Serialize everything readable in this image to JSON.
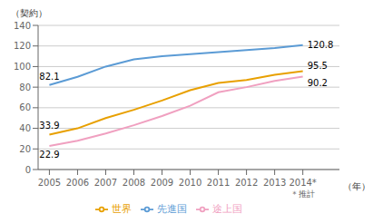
{
  "chart_data": {
    "type": "line",
    "y_label": "（契約）",
    "x_label": "（年）",
    "x": [
      2005,
      2006,
      2007,
      2008,
      2009,
      2010,
      2011,
      2012,
      2013,
      2014
    ],
    "series": [
      {
        "name": "先進国",
        "color": "#5b9bd5",
        "values": [
          82.1,
          90.0,
          100.0,
          107.0,
          110.0,
          112.0,
          114.0,
          116.0,
          118.0,
          120.8
        ],
        "value_labels": [
          "82.1",
          null,
          null,
          null,
          null,
          null,
          null,
          null,
          null,
          "120.8"
        ]
      },
      {
        "name": "途上国",
        "color": "#f0a0c0",
        "values": [
          22.9,
          28.0,
          35.0,
          43.0,
          52.0,
          62.0,
          75.0,
          80.0,
          86.0,
          90.2
        ],
        "value_labels": [
          "22.9",
          null,
          null,
          null,
          null,
          null,
          null,
          null,
          null,
          "90.2"
        ]
      },
      {
        "name": "世界",
        "color": "#e8a000",
        "values": [
          33.9,
          40.0,
          50.0,
          58.0,
          67.0,
          77.0,
          84.0,
          87.0,
          92.0,
          95.5
        ],
        "value_labels": [
          "33.9",
          null,
          null,
          null,
          null,
          null,
          null,
          null,
          null,
          "95.5"
        ]
      }
    ],
    "xlim": [
      2004.6,
      2015.3
    ],
    "xticks": [
      2005,
      2006,
      2007,
      2008,
      2009,
      2010,
      2011,
      2012,
      2013,
      {
        "value": 2014,
        "label": "2014*"
      }
    ],
    "ylim": [
      0,
      140
    ],
    "yticks": [
      0,
      20,
      40,
      60,
      80,
      100,
      120,
      140
    ],
    "grid": true,
    "legend": "bottom",
    "annotations": [
      {
        "text": "＊推計",
        "x": 2014
      }
    ]
  }
}
